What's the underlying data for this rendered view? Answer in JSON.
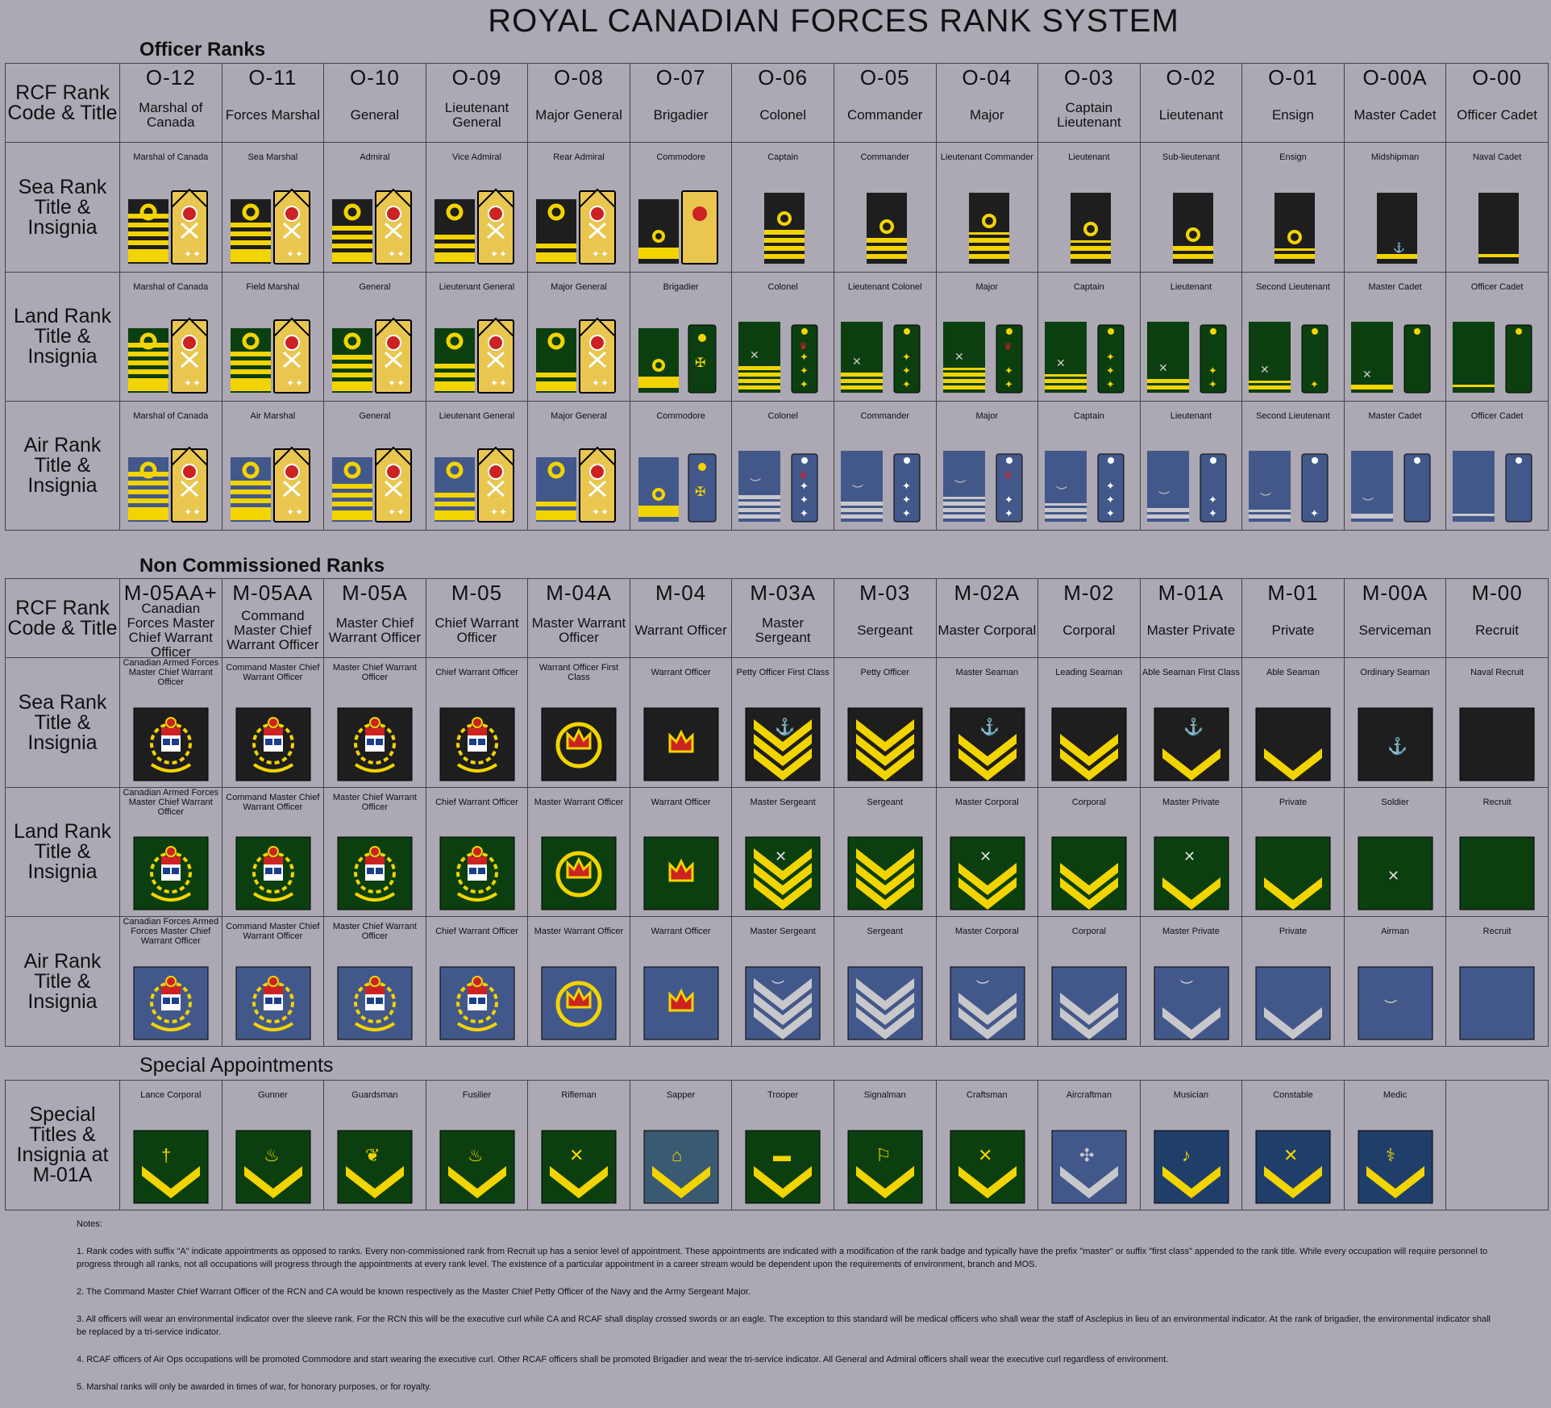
{
  "title": "ROYAL CANADIAN FORCES RANK SYSTEM",
  "officer": {
    "heading": "Officer Ranks",
    "row_labels": {
      "code": "RCF Rank Code & Title",
      "sea": "Sea Rank Title & Insignia",
      "land": "Land Rank Title & Insignia",
      "air": "Air Rank Title & Insignia"
    },
    "codes": [
      "O-12",
      "O-11",
      "O-10",
      "O-09",
      "O-08",
      "O-07",
      "O-06",
      "O-05",
      "O-04",
      "O-03",
      "O-02",
      "O-01",
      "O-00A",
      "O-00"
    ],
    "titles": [
      "Marshal of Canada",
      "Forces Marshal",
      "General",
      "Lieutenant General",
      "Major General",
      "Brigadier",
      "Colonel",
      "Commander",
      "Major",
      "Captain Lieutenant",
      "Lieutenant",
      "Ensign",
      "Master Cadet",
      "Officer Cadet"
    ],
    "sea": [
      "Marshal of Canada",
      "Sea Marshal",
      "Admiral",
      "Vice Admiral",
      "Rear Admiral",
      "Commodore",
      "Captain",
      "Commander",
      "Lieutenant Commander",
      "Lieutenant",
      "Sub-lieutenant",
      "Ensign",
      "Midshipman",
      "Naval Cadet"
    ],
    "land": [
      "Marshal of Canada",
      "Field Marshal",
      "General",
      "Lieutenant General",
      "Major General",
      "Brigadier",
      "Colonel",
      "Lieutenant Colonel",
      "Major",
      "Captain",
      "Lieutenant",
      "Second Lieutenant",
      "Master Cadet",
      "Officer Cadet"
    ],
    "air": [
      "Marshal of Canada",
      "Air Marshal",
      "General",
      "Lieutenant General",
      "Major General",
      "Commodore",
      "Colonel",
      "Commander",
      "Major",
      "Captain",
      "Lieutenant",
      "Second Lieutenant",
      "Master Cadet",
      "Officer Cadet"
    ]
  },
  "ncm": {
    "heading": "Non Commissioned Ranks",
    "row_labels": {
      "code": "RCF Rank Code & Title",
      "sea": "Sea Rank Title & Insignia",
      "land": "Land Rank Title & Insignia",
      "air": "Air Rank Title & Insignia"
    },
    "codes": [
      "M-05AA+",
      "M-05AA",
      "M-05A",
      "M-05",
      "M-04A",
      "M-04",
      "M-03A",
      "M-03",
      "M-02A",
      "M-02",
      "M-01A",
      "M-01",
      "M-00A",
      "M-00"
    ],
    "titles": [
      "Canadian Forces Master Chief Warrant Officer",
      "Command Master Chief Warrant Officer",
      "Master Chief Warrant Officer",
      "Chief Warrant Officer",
      "Master Warrant Officer",
      "Warrant Officer",
      "Master Sergeant",
      "Sergeant",
      "Master Corporal",
      "Corporal",
      "Master Private",
      "Private",
      "Serviceman",
      "Recruit"
    ],
    "sea": [
      "Canadian Armed Forces Master Chief Warrant Officer",
      "Command Master Chief Warrant Officer",
      "Master Chief Warrant Officer",
      "Chief Warrant Officer",
      "Warrant Officer First Class",
      "Warrant Officer",
      "Petty Officer First Class",
      "Petty Officer",
      "Master Seaman",
      "Leading Seaman",
      "Able Seaman First Class",
      "Able Seaman",
      "Ordinary Seaman",
      "Naval Recruit"
    ],
    "land": [
      "Canadian Armed Forces Master Chief Warrant Officer",
      "Command Master Chief Warrant Officer",
      "Master Chief Warrant Officer",
      "Chief Warrant Officer",
      "Master Warrant Officer",
      "Warrant Officer",
      "Master Sergeant",
      "Sergeant",
      "Master Corporal",
      "Corporal",
      "Master Private",
      "Private",
      "Soldier",
      "Recruit"
    ],
    "air": [
      "Canadian Forces Armed Forces Master Chief Warrant Officer",
      "Command Master Chief Warrant Officer",
      "Master Chief Warrant Officer",
      "Chief Warrant Officer",
      "Master Warrant Officer",
      "Warrant Officer",
      "Master Sergeant",
      "Sergeant",
      "Master Corporal",
      "Corporal",
      "Master Private",
      "Private",
      "Airman",
      "Recruit"
    ]
  },
  "special": {
    "heading": "Special Appointments",
    "row_label": "Special Titles & Insignia at M-01A",
    "titles": [
      "Lance Corporal",
      "Gunner",
      "Guardsman",
      "Fusilier",
      "Rifleman",
      "Sapper",
      "Trooper",
      "Signalman",
      "Craftsman",
      "Aircraftman",
      "Musician",
      "Constable",
      "Medic",
      ""
    ]
  },
  "notes": [
    "Notes:",
    "1. Rank codes with suffix \"A\" indicate appointments as opposed to ranks.  Every non-commissioned rank from Recruit up has a senior level of appointment.  These appointments are indicated with a modification of the rank badge and typically have the prefix \"master\" or suffix \"first class\" appended to the rank title.  While every occupation will require personnel to progress through all ranks, not all occupations will progress through the appointments at every rank level.  The existence of a particular appointment in a career stream would be dependent upon the requirements of environment, branch and MOS.",
    "2.  The Command Master Chief Warrant Officer of the RCN and CA would be known respectively as the Master Chief Petty Officer of the Navy and the Army Sergeant Major.",
    "3.  All officers will wear an environmental indicator over the sleeve rank.  For the RCN this will be the executive curl while CA and RCAF shall display crossed swords or an eagle.  The exception to this standard will be medical officers who shall wear the staff of Asclepius in lieu of an environmental indicator. At the rank of brigadier, the environmental indicator shall be replaced by a tri-service indicator.",
    "4.  RCAF officers of Air Ops occupations will be promoted Commodore and start wearing the executive curl.  Other RCAF officers shall be promoted Brigadier and wear the tri-service indicator.  All General and Admiral officers shall wear the executive curl regardless of environment.",
    "5.  Marshal ranks will only be awarded in times of war, for honorary purposes, or for royalty."
  ],
  "colors": {
    "background": "#aca8b4",
    "sea": "#1e1e1e",
    "land": "#0c3f10",
    "air": "#43588a",
    "gold": "#f2d400",
    "silver": "#c8c8cc"
  }
}
